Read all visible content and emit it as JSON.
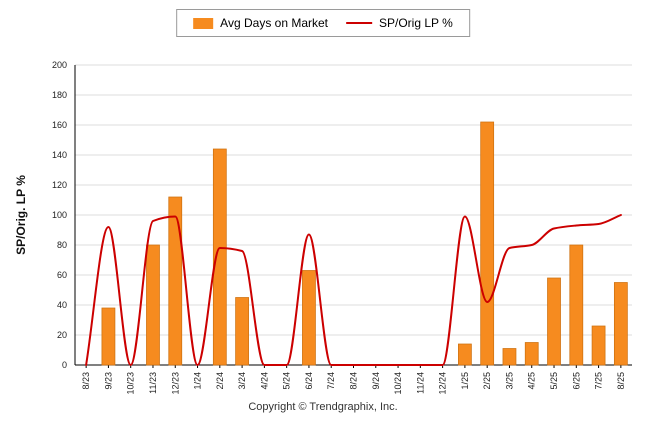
{
  "legend": {
    "bar_label": "Avg Days on Market",
    "line_label": "SP/Orig LP %"
  },
  "y_axis_title": "SP/Orig. LP %",
  "footer": "Copyright © Trendgraphix, Inc.",
  "colors": {
    "bar": "#F68B1F",
    "bar_border": "#CE7110",
    "line": "#CC0000",
    "grid": "#DDDDDD",
    "axis": "#000000",
    "text": "#222222"
  },
  "chart_data": {
    "type": "bar",
    "combo": "bar+line",
    "title": "",
    "categories": [
      "8/23",
      "9/23",
      "10/23",
      "11/23",
      "12/23",
      "1/24",
      "2/24",
      "3/24",
      "4/24",
      "5/24",
      "6/24",
      "7/24",
      "8/24",
      "9/24",
      "10/24",
      "11/24",
      "12/24",
      "1/25",
      "2/25",
      "3/25",
      "4/25",
      "5/25",
      "6/25",
      "7/25",
      "8/25"
    ],
    "series": [
      {
        "name": "Avg Days on Market",
        "type": "bar",
        "color": "#F68B1F",
        "values": [
          0,
          38,
          0,
          80,
          112,
          0,
          144,
          45,
          0,
          0,
          63,
          0,
          0,
          0,
          0,
          0,
          0,
          14,
          162,
          11,
          15,
          58,
          80,
          26,
          55
        ]
      },
      {
        "name": "SP/Orig LP %",
        "type": "line",
        "color": "#CC0000",
        "values": [
          0,
          92,
          0,
          96,
          99,
          0,
          78,
          76,
          0,
          0,
          87,
          0,
          0,
          0,
          0,
          0,
          0,
          99,
          42,
          78,
          80,
          91,
          93,
          94,
          100
        ]
      }
    ],
    "ylabel": "SP/Orig. LP %",
    "ylim": [
      0,
      200
    ],
    "y_tick_step": 20,
    "grid": true,
    "legend_position": "top"
  }
}
